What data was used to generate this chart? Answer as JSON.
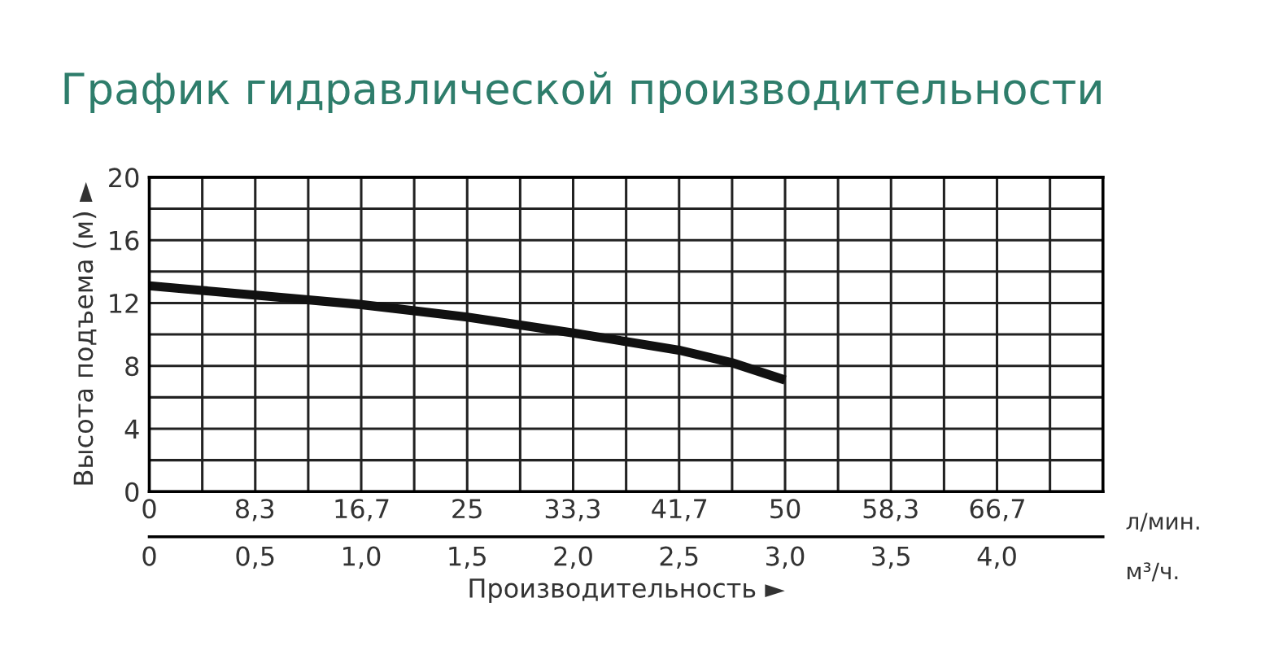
{
  "chart_data": {
    "type": "line",
    "title": "График гидравлической производительности",
    "xlabel": "Производительность ►",
    "ylabel": "Высота подъема (м) ►",
    "x": [
      0,
      0.25,
      0.5,
      1.0,
      1.5,
      2.0,
      2.5,
      2.75,
      3.0
    ],
    "series": [
      {
        "color": "#111111",
        "values": [
          13.1,
          12.8,
          12.5,
          11.9,
          11.1,
          10.1,
          9.0,
          8.2,
          7.1
        ]
      }
    ],
    "xlim": [
      0,
      4.5
    ],
    "xticks": [
      0,
      {
        "value": 0.25,
        "label": null
      },
      {
        "value": 0.5,
        "label": "0,5"
      },
      {
        "value": 0.75,
        "label": null
      },
      {
        "value": 1.0,
        "label": "1,0"
      },
      {
        "value": 1.25,
        "label": null
      },
      {
        "value": 1.5,
        "label": "1,5"
      },
      {
        "value": 1.75,
        "label": null
      },
      {
        "value": 2.0,
        "label": "2,0"
      },
      {
        "value": 2.25,
        "label": null
      },
      {
        "value": 2.5,
        "label": "2,5"
      },
      {
        "value": 2.75,
        "label": null
      },
      {
        "value": 3.0,
        "label": "3,0"
      },
      {
        "value": 3.25,
        "label": null
      },
      {
        "value": 3.5,
        "label": "3,5"
      },
      {
        "value": 3.75,
        "label": null
      },
      {
        "value": 4.0,
        "label": "4,0"
      },
      {
        "value": 4.25,
        "label": null
      }
    ],
    "x2lim": [
      0,
      75
    ],
    "x2ticks": [
      0,
      {
        "value": 8.3,
        "label": "8,3"
      },
      {
        "value": 16.7,
        "label": "16,7"
      },
      25,
      {
        "value": 33.3,
        "label": "33,3"
      },
      {
        "value": 41.7,
        "label": "41,7"
      },
      50,
      {
        "value": 58.3,
        "label": "58,3"
      },
      {
        "value": 66.7,
        "label": "66,7"
      }
    ],
    "ylim": [
      0,
      20
    ],
    "yticks": [
      0,
      {
        "value": 2,
        "label": null
      },
      4,
      {
        "value": 6,
        "label": null
      },
      8,
      {
        "value": 10,
        "label": null
      },
      12,
      {
        "value": 14,
        "label": null
      },
      16,
      {
        "value": 18,
        "label": null
      },
      20
    ],
    "grid": true,
    "legend": false,
    "marker": "none",
    "line_style": "solid",
    "annotations": [
      "л/мин.",
      "м³/ч."
    ]
  }
}
